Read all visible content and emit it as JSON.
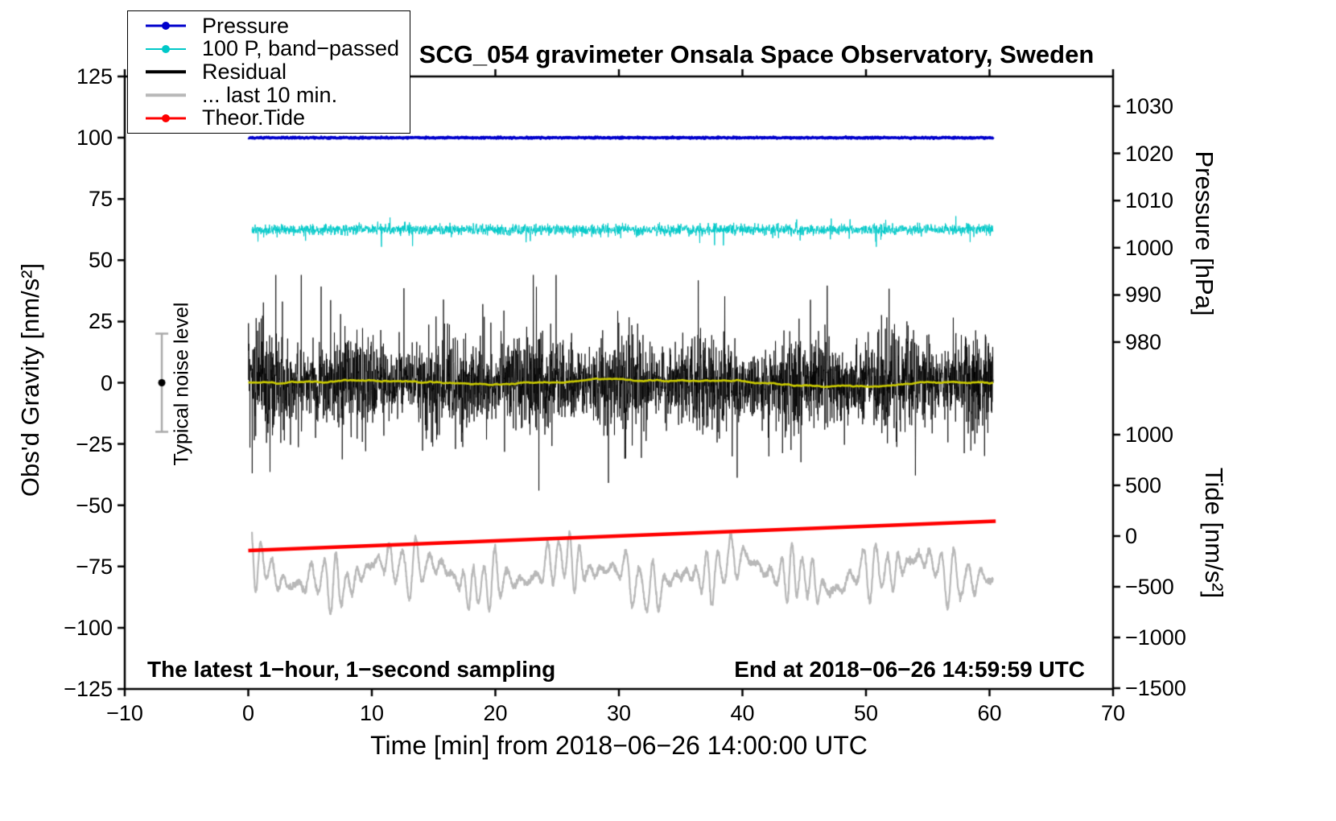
{
  "chart_data": {
    "type": "line",
    "title": "SCG_054 gravimeter Onsala Space Observatory, Sweden",
    "xlabel": "Time [min] from 2018−06−26 14:00:00 UTC",
    "ylabel_left": "Obs'd Gravity [nm/s²]",
    "ylabel_right_pressure": "Pressure [hPa]",
    "ylabel_right_tide": "Tide [nm/s²]",
    "note_left": "The latest 1−hour, 1−second sampling",
    "note_right": "End at 2018−06−26 14:59:59 UTC",
    "noise_label": "Typical noise level",
    "x_range": [
      -10,
      70
    ],
    "x_ticks": [
      {
        "v": -10,
        "label": "−10"
      },
      {
        "v": 0,
        "label": "0"
      },
      {
        "v": 10,
        "label": "10"
      },
      {
        "v": 20,
        "label": "20"
      },
      {
        "v": 30,
        "label": "30"
      },
      {
        "v": 40,
        "label": "40"
      },
      {
        "v": 50,
        "label": "50"
      },
      {
        "v": 60,
        "label": "60"
      },
      {
        "v": 70,
        "label": "70"
      }
    ],
    "gravity_range": [
      -125,
      125
    ],
    "gravity_ticks": [
      {
        "v": 125,
        "label": "125"
      },
      {
        "v": 100,
        "label": "100"
      },
      {
        "v": 75,
        "label": "75"
      },
      {
        "v": 50,
        "label": "50"
      },
      {
        "v": 25,
        "label": "25"
      },
      {
        "v": 0,
        "label": "0"
      },
      {
        "v": -25,
        "label": "−25"
      },
      {
        "v": -50,
        "label": "−50"
      },
      {
        "v": -75,
        "label": "−75"
      },
      {
        "v": -100,
        "label": "−100"
      },
      {
        "v": -125,
        "label": "−125"
      }
    ],
    "pressure_ticks": [
      {
        "v": 1030,
        "label": "1030"
      },
      {
        "v": 1020,
        "label": "1020"
      },
      {
        "v": 1010,
        "label": "1010"
      },
      {
        "v": 1000,
        "label": "1000"
      },
      {
        "v": 990,
        "label": "990"
      },
      {
        "v": 980,
        "label": "980"
      }
    ],
    "tide_ticks": [
      {
        "v": 1000,
        "label": "1000"
      },
      {
        "v": 500,
        "label": "500"
      },
      {
        "v": 0,
        "label": "0"
      },
      {
        "v": -500,
        "label": "−500"
      },
      {
        "v": -1000,
        "label": "−1000"
      },
      {
        "v": -1500,
        "label": "−1500"
      }
    ],
    "noise_bar": {
      "x_min_t": -7,
      "center_value": 0,
      "half_range": 20
    },
    "series": [
      {
        "id": "residual_last10",
        "label": "... last 10 min.",
        "color": "#b8b8b8",
        "axis": "gravity",
        "kind": "oscillation",
        "baseline": -78,
        "amplitude": 13,
        "period_min": 0.95,
        "x_start": 0.3,
        "x_end": 60.3,
        "samples": 3000,
        "line_width": 2.2
      },
      {
        "id": "theor_tide",
        "label": "Theor.Tide",
        "color": "#ff0000",
        "axis": "gravity",
        "kind": "trend",
        "x": [
          0,
          60.5
        ],
        "y": [
          -68.5,
          -56.5
        ],
        "line_width": 4.5
      },
      {
        "id": "residual",
        "label": "Residual",
        "color": "#000000",
        "axis": "gravity",
        "kind": "flat_noise",
        "baseline": 0,
        "sigma": 8.5,
        "burst_prob": 0.06,
        "burst_scale": 2.4,
        "env_amp": 0.25,
        "clamp": 44,
        "x_start": 0,
        "x_end": 60.3,
        "samples": 3600,
        "line_width": 0.8
      },
      {
        "id": "residual_smoothed",
        "label": "Residual smoothed",
        "color": "#c8c800",
        "axis": "gravity",
        "kind": "slow_wander",
        "baseline": 0,
        "sigma": 0.8,
        "x_start": 0,
        "x_end": 60.3,
        "samples": 1200,
        "line_width": 2.6
      },
      {
        "id": "pressure_bandpassed",
        "label": "100 P, band−passed",
        "color": "#00c8c8",
        "axis": "gravity",
        "kind": "flat_noise",
        "baseline": 62.5,
        "sigma": 1.1,
        "burst_prob": 0.03,
        "burst_scale": 2.6,
        "env_amp": 0,
        "clamp": 7,
        "x_start": 0.3,
        "x_end": 60.3,
        "samples": 2600,
        "line_width": 1
      },
      {
        "id": "pressure",
        "label": "Pressure",
        "color": "#0000cc",
        "axis": "gravity",
        "kind": "flat_noise",
        "baseline": 100,
        "sigma": 0.14,
        "burst_prob": 0,
        "burst_scale": 1,
        "env_amp": 0,
        "clamp": 1.2,
        "x_start": 0,
        "x_end": 60.3,
        "samples": 1400,
        "line_width": 3.4
      }
    ],
    "legend": {
      "items": [
        {
          "label": "Pressure",
          "color": "#0000cc",
          "marker": true,
          "line_width": 3
        },
        {
          "label": "100 P, band−passed",
          "color": "#00c8c8",
          "marker": true,
          "line_width": 2
        },
        {
          "label": "Residual",
          "color": "#000000",
          "marker": false,
          "line_width": 3.5
        },
        {
          "label": "... last 10 min.",
          "color": "#b8b8b8",
          "marker": false,
          "line_width": 3.5
        },
        {
          "label": "Theor.Tide",
          "color": "#ff0000",
          "marker": true,
          "line_width": 3
        }
      ]
    }
  },
  "figure": {
    "background": "#ffffff"
  }
}
